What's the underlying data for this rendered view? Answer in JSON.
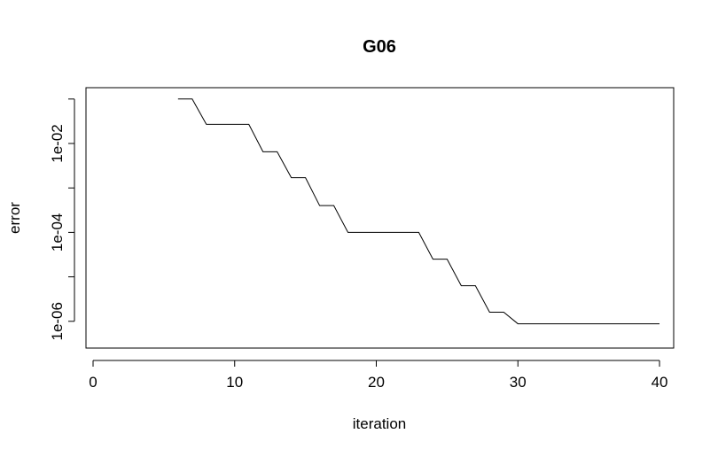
{
  "chart_data": {
    "type": "line",
    "title": "G06",
    "xlabel": "iteration",
    "ylabel": "error",
    "y_scale": "log10",
    "xlim": [
      -0.5,
      41
    ],
    "ylim": [
      2.5e-07,
      0.18
    ],
    "x_ticks": [
      0,
      10,
      20,
      30,
      40
    ],
    "y_ticks": [
      {
        "value": 1e-06,
        "label": "1e-06"
      },
      {
        "value": 1e-05,
        "label": ""
      },
      {
        "value": 0.0001,
        "label": "1e-04"
      },
      {
        "value": 0.001,
        "label": ""
      },
      {
        "value": 0.01,
        "label": "1e-02"
      },
      {
        "value": 0.1,
        "label": ""
      }
    ],
    "grid": false,
    "series": [
      {
        "color": "#000000",
        "steps": [
          [
            6,
            0.1
          ],
          [
            7,
            0.1
          ],
          [
            8,
            0.027
          ],
          [
            11,
            0.027
          ],
          [
            12,
            0.0065
          ],
          [
            13,
            0.0065
          ],
          [
            14,
            0.0017
          ],
          [
            15,
            0.0017
          ],
          [
            16,
            0.0004
          ],
          [
            17,
            0.0004
          ],
          [
            18,
            0.0001
          ],
          [
            23,
            0.0001
          ],
          [
            24,
            2.5e-05
          ],
          [
            25,
            2.5e-05
          ],
          [
            26,
            6.3e-06
          ],
          [
            27,
            6.3e-06
          ],
          [
            28,
            1.6e-06
          ],
          [
            29,
            1.6e-06
          ],
          [
            30,
            8.8e-07
          ],
          [
            40,
            8.8e-07
          ]
        ]
      }
    ]
  }
}
